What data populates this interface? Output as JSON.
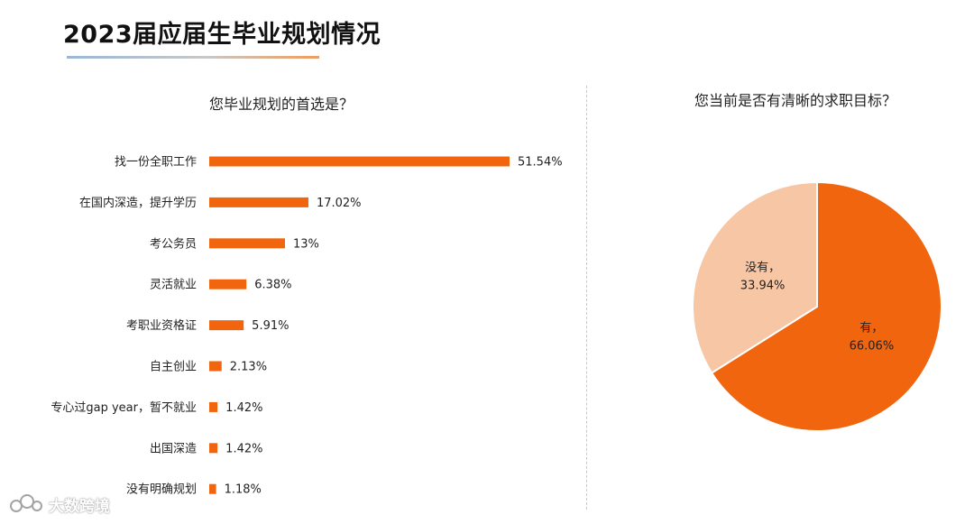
{
  "page": {
    "title": "2023届应届生毕业规划情况"
  },
  "colors": {
    "accent": "#f0650e",
    "pie_light": "#f6c6a5",
    "pie_dark": "#f0650e"
  },
  "watermark": {
    "text": "大数跨境",
    "icon": "logo-icon"
  },
  "chart_data": [
    {
      "type": "bar",
      "orientation": "horizontal",
      "title": "您毕业规划的首选是？",
      "unit": "%",
      "categories": [
        "找一份全职工作",
        "在国内深造，提升学历",
        "考公务员",
        "灵活就业",
        "考职业资格证",
        "自主创业",
        "专心过gap year，暂不就业",
        "出国深造",
        "没有明确规划"
      ],
      "values": [
        51.54,
        17.02,
        13,
        6.38,
        5.91,
        2.13,
        1.42,
        1.42,
        1.18
      ],
      "value_labels": [
        "51.54%",
        "17.02%",
        "13%",
        "6.38%",
        "5.91%",
        "2.13%",
        "1.42%",
        "1.42%",
        "1.18%"
      ],
      "color": "#f0650e"
    },
    {
      "type": "pie",
      "title": "您当前是否有清晰的求职目标？",
      "slices": [
        {
          "label": "有，",
          "value": 66.06,
          "value_label": "66.06%",
          "color": "#f0650e"
        },
        {
          "label": "没有，",
          "value": 33.94,
          "value_label": "33.94%",
          "color": "#f6c6a5"
        }
      ]
    }
  ]
}
